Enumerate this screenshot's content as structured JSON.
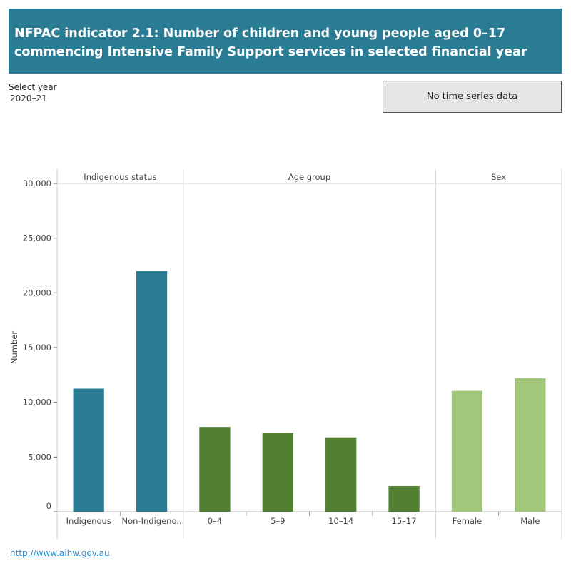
{
  "header": {
    "title": "NFPAC indicator 2.1: Number of children and young people aged 0–17 commencing Intensive Family Support services in selected financial year"
  },
  "filter": {
    "label": "Select year",
    "value": "2020–21"
  },
  "time_series_button": "No time series data",
  "footer": {
    "link": "http://www.aihw.gov.au"
  },
  "chart_data": {
    "type": "bar",
    "ylabel": "Number",
    "ylim": [
      0,
      30000
    ],
    "yticks": [
      0,
      5000,
      10000,
      15000,
      20000,
      25000,
      30000
    ],
    "ytick_labels": [
      "0",
      "5,000",
      "10,000",
      "15,000",
      "20,000",
      "25,000",
      "30,000"
    ],
    "grid": false,
    "panels": [
      {
        "name": "Indigenous status",
        "color": "#2a7b94",
        "categories": [
          "Indigenous",
          "Non-Indigeno.."
        ],
        "values": [
          11250,
          22000
        ]
      },
      {
        "name": "Age group",
        "color": "#527f31",
        "categories": [
          "0–4",
          "5–9",
          "10–14",
          "15–17"
        ],
        "values": [
          7750,
          7200,
          6800,
          2350
        ]
      },
      {
        "name": "Sex",
        "color": "#a2c77a",
        "categories": [
          "Female",
          "Male"
        ],
        "values": [
          11050,
          12200
        ]
      }
    ]
  }
}
